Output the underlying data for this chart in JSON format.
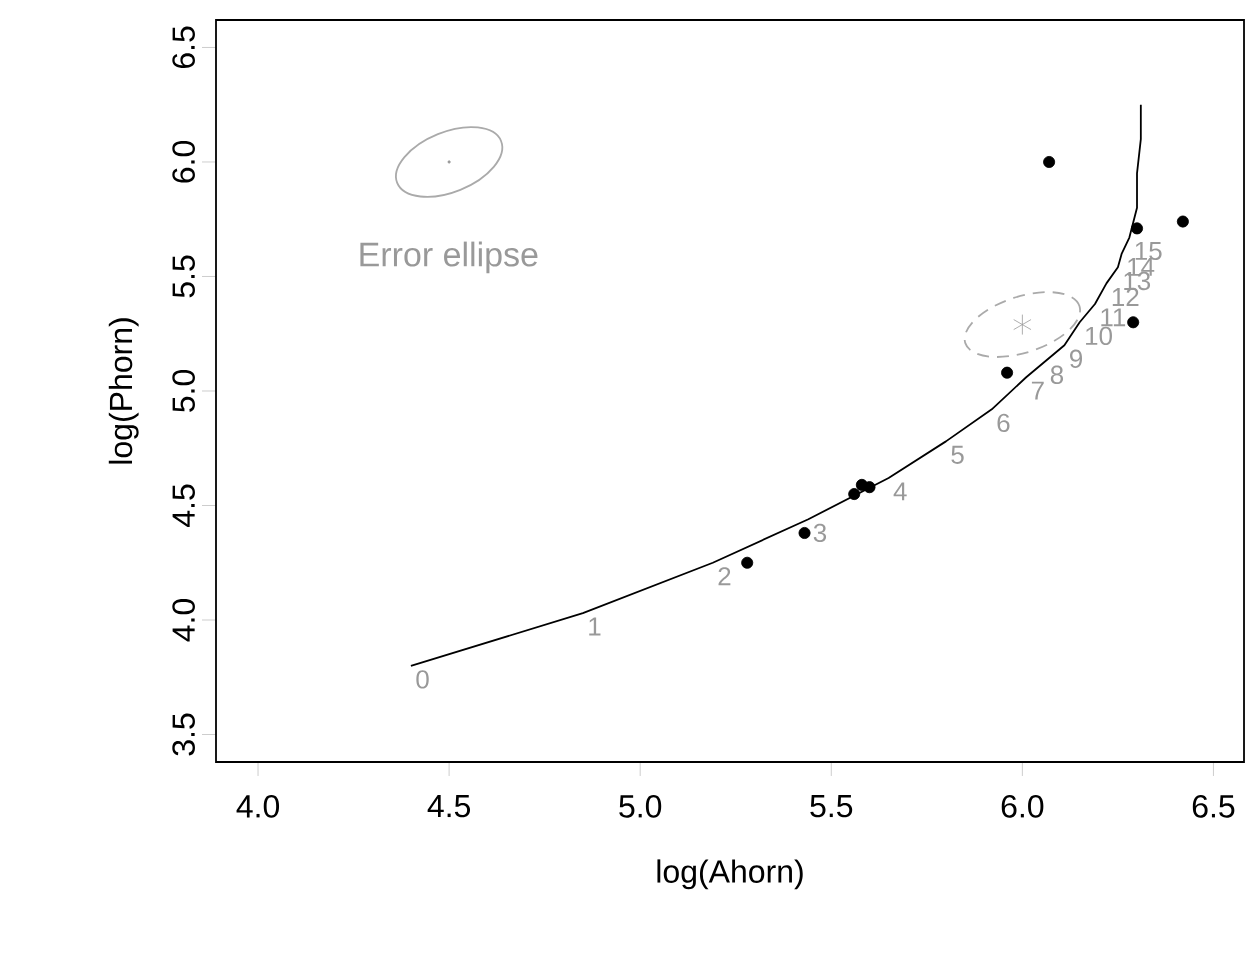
{
  "chart_data": {
    "type": "scatter",
    "xlabel": "log(Ahorn)",
    "ylabel": "log(Phorn)",
    "xlim": [
      3.89,
      6.58
    ],
    "ylim": [
      3.38,
      6.62
    ],
    "xticks": [
      {
        "value": 4,
        "label": "4.0"
      },
      {
        "value": 4.5,
        "label": "4.5"
      },
      {
        "value": 5,
        "label": "5.0"
      },
      {
        "value": 5.5,
        "label": "5.5"
      },
      {
        "value": 6,
        "label": "6.0"
      },
      {
        "value": 6.5,
        "label": "6.5"
      }
    ],
    "yticks": [
      {
        "value": 3.5,
        "label": "3.5"
      },
      {
        "value": 4,
        "label": "4.0"
      },
      {
        "value": 4.5,
        "label": "4.5"
      },
      {
        "value": 5,
        "label": "5.0"
      },
      {
        "value": 5.5,
        "label": "5.5"
      },
      {
        "value": 6,
        "label": "6.0"
      },
      {
        "value": 6.5,
        "label": "6.5"
      }
    ],
    "series": [
      {
        "type": "line",
        "color": "#000000",
        "marker": "none",
        "line_style": "solid",
        "x": [
          4.4,
          4.85,
          5.19,
          5.44,
          5.65,
          5.8,
          5.92,
          6.01,
          6.06,
          6.11,
          6.15,
          6.19,
          6.22,
          6.25,
          6.26,
          6.28,
          6.3,
          6.3,
          6.31,
          6.31
        ],
        "values": [
          3.8,
          4.03,
          4.25,
          4.44,
          4.62,
          4.78,
          4.92,
          5.06,
          5.13,
          5.2,
          5.3,
          5.38,
          5.47,
          5.54,
          5.6,
          5.67,
          5.8,
          5.95,
          6.1,
          6.25
        ]
      },
      {
        "color": "#000000",
        "marker": "circle",
        "x": [
          5.28,
          5.43,
          5.56,
          5.58,
          5.6,
          5.96,
          6.07,
          6.42,
          6.29,
          6.3
        ],
        "values": [
          4.25,
          4.38,
          4.55,
          4.59,
          4.58,
          5.08,
          6.0,
          5.74,
          5.3,
          5.71
        ]
      },
      {
        "color": "#999999",
        "marker": "cross",
        "x": [
          6.0
        ],
        "values": [
          5.29
        ]
      },
      {
        "color": "#999999",
        "marker": "circle",
        "x": [
          4.5
        ],
        "values": [
          6.0
        ]
      }
    ],
    "annotations": [
      "Error ellipse",
      {
        "text": "0",
        "x": 4.4,
        "y": 3.8
      },
      {
        "text": "1",
        "x": 4.85,
        "y": 4.03
      },
      {
        "text": "2",
        "x": 5.19,
        "y": 4.25
      },
      {
        "text": "3",
        "x": 5.44,
        "y": 4.44
      },
      {
        "text": "4",
        "x": 5.65,
        "y": 4.62
      },
      {
        "text": "5",
        "x": 5.8,
        "y": 4.78
      },
      {
        "text": "6",
        "x": 5.92,
        "y": 4.92
      },
      {
        "text": "7",
        "x": 6.01,
        "y": 5.06
      },
      {
        "text": "8",
        "x": 6.06,
        "y": 5.13
      },
      {
        "text": "9",
        "x": 6.11,
        "y": 5.2
      },
      {
        "text": "10",
        "x": 6.15,
        "y": 5.3
      },
      {
        "text": "11",
        "x": 6.19,
        "y": 5.38
      },
      {
        "text": "12",
        "x": 6.22,
        "y": 5.47
      },
      {
        "text": "13",
        "x": 6.25,
        "y": 5.54
      },
      {
        "text": "14",
        "x": 6.26,
        "y": 5.6
      },
      {
        "text": "15",
        "x": 6.28,
        "y": 5.67
      }
    ]
  }
}
